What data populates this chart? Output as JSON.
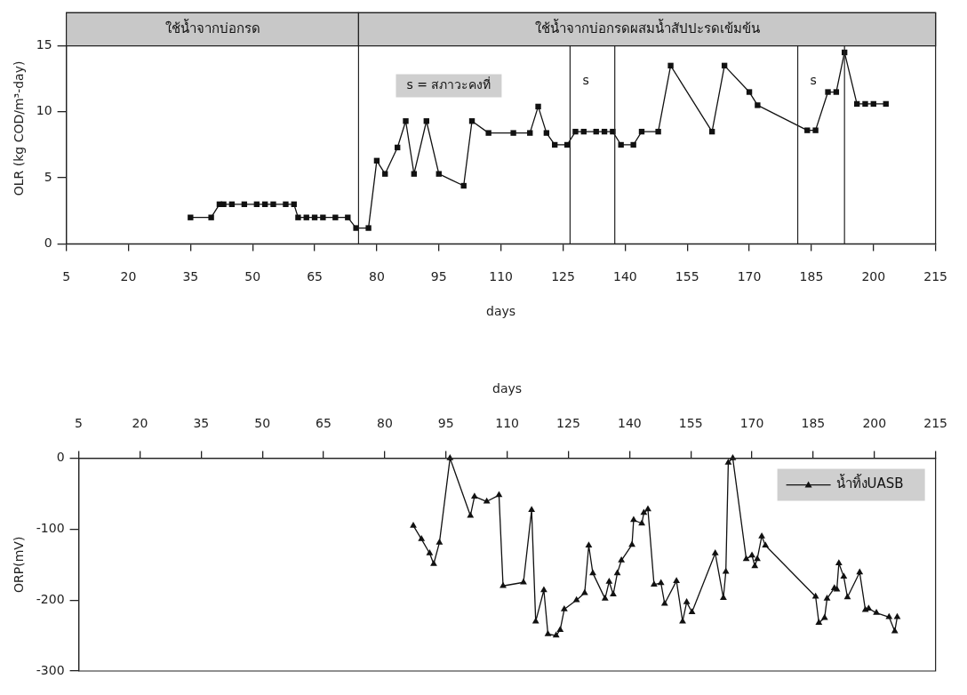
{
  "chart_data": [
    {
      "type": "line",
      "xlabel": "days",
      "ylabel": "OLR (kg COD/m³-day)",
      "xlim": [
        5,
        215
      ],
      "xticks": [
        5,
        20,
        35,
        50,
        65,
        80,
        95,
        110,
        125,
        140,
        155,
        170,
        185,
        200,
        215
      ],
      "ylim": [
        0,
        17.5
      ],
      "yticks": [
        0,
        5,
        10,
        15
      ],
      "grid": false,
      "legend": false,
      "marker": "square",
      "line_style": "solid",
      "x": [
        35,
        40,
        42,
        43,
        45,
        48,
        51,
        53,
        55,
        58,
        60,
        61,
        63,
        65,
        67,
        70,
        73,
        75,
        78,
        80,
        82,
        85,
        87,
        89,
        92,
        95,
        101,
        103,
        107,
        113,
        117,
        119,
        121,
        123,
        126,
        128,
        130,
        133,
        135,
        137,
        139,
        142,
        144,
        148,
        151,
        161,
        164,
        170,
        172,
        184,
        186,
        189,
        191,
        193,
        196,
        198,
        200,
        203
      ],
      "series": [
        {
          "color": "#111111",
          "values": [
            2,
            2,
            3,
            3,
            3,
            3,
            3,
            3,
            3,
            3,
            3,
            2,
            2,
            2,
            2,
            2,
            2,
            1.2,
            1.2,
            6.3,
            5.3,
            7.3,
            9.3,
            5.3,
            9.3,
            5.3,
            4.4,
            9.3,
            8.4,
            8.4,
            8.4,
            10.4,
            8.4,
            7.5,
            7.5,
            8.5,
            8.5,
            8.5,
            8.5,
            8.5,
            7.5,
            7.5,
            8.5,
            8.5,
            13.5,
            8.5,
            13.5,
            11.5,
            10.5,
            8.6,
            8.6,
            11.5,
            11.5,
            14.5,
            10.6,
            10.6,
            10.6,
            10.6
          ]
        }
      ],
      "ref_lines": [
        {
          "axis": "x",
          "value": 75.6
        },
        {
          "axis": "x",
          "value": 126.7,
          "label": "s"
        },
        {
          "axis": "x",
          "value": 137.5
        },
        {
          "axis": "x",
          "value": 181.7,
          "label": "s"
        },
        {
          "axis": "x",
          "value": 193
        }
      ],
      "bands": [
        {
          "axis": "x",
          "from": 5,
          "to": 75.6,
          "label": "ใช้น้ำจากบ่อกรด",
          "color": "#c8c8c8"
        },
        {
          "axis": "x",
          "from": 75.6,
          "to": 215,
          "label": "ใช้น้ำจากบ่อกรดผสมน้ำสัปปะรดเข้มข้น",
          "color": "#c8c8c8"
        }
      ],
      "annotations": [
        "s = สภาวะคงที่"
      ]
    },
    {
      "type": "line",
      "x2label": "days",
      "ylabel": "ORP(mV)",
      "x2lim": [
        5,
        215
      ],
      "x2ticks": [
        5,
        20,
        35,
        50,
        65,
        80,
        95,
        110,
        125,
        140,
        155,
        170,
        185,
        200,
        215
      ],
      "ylim": [
        -300,
        0
      ],
      "yticks": [
        0,
        -100,
        -200,
        -300
      ],
      "grid": false,
      "legend": "top right",
      "marker": "triangle",
      "line_style": "solid",
      "x": [
        87,
        89,
        91,
        92,
        93.4,
        96,
        101,
        102,
        105,
        108,
        109,
        114,
        116,
        117,
        119,
        120,
        122,
        123,
        124,
        127,
        129,
        130,
        131,
        134,
        135,
        136,
        137,
        138,
        140.6,
        141,
        143,
        143.5,
        144.5,
        146,
        147.7,
        148.6,
        151.5,
        153,
        154,
        155.3,
        161,
        163,
        163.6,
        164.2,
        165.3,
        168.6,
        170,
        170.7,
        171.3,
        172.4,
        173.3,
        185.6,
        186.4,
        187.8,
        188.4,
        190.2,
        190.8,
        191.3,
        192.5,
        193.4,
        196.4,
        197.8,
        198.6,
        200.5,
        203.6,
        205,
        205.6
      ],
      "series": [
        {
          "name": "น้ำทิ้งUASB",
          "color": "#111111",
          "axis": "x2",
          "values": [
            -95,
            -114,
            -134,
            -149,
            -119,
            0,
            -81,
            -54,
            -61,
            -52,
            -180,
            -175,
            -73,
            -230,
            -186,
            -248,
            -250,
            -242,
            -213,
            -200,
            -190,
            -123,
            -162,
            -198,
            -174,
            -192,
            -162,
            -144,
            -122,
            -87,
            -92,
            -77,
            -72,
            -178,
            -176,
            -205,
            -173,
            -230,
            -203,
            -217,
            -134,
            -197,
            -160,
            -6,
            0,
            -142,
            -137,
            -152,
            -142,
            -110,
            -123,
            -195,
            -232,
            -225,
            -198,
            -183,
            -185,
            -148,
            -167,
            -196,
            -161,
            -214,
            -212,
            -218,
            -224,
            -244,
            -224
          ]
        }
      ]
    }
  ]
}
